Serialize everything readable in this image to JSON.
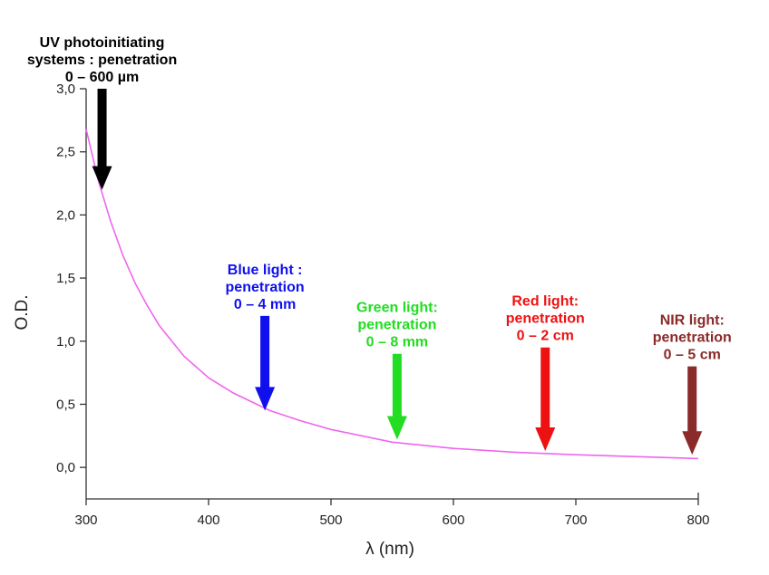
{
  "chart_data": {
    "type": "line",
    "title": "",
    "xlabel": "λ (nm)",
    "ylabel": "O.D.",
    "xlim": [
      300,
      800
    ],
    "ylim": [
      -0.25,
      3.0
    ],
    "x_ticks": [
      300,
      400,
      500,
      600,
      700,
      800
    ],
    "x_tick_labels": [
      "300",
      "400",
      "500",
      "600",
      "700",
      "800"
    ],
    "y_ticks": [
      0.0,
      0.5,
      1.0,
      1.5,
      2.0,
      2.5,
      3.0
    ],
    "y_tick_labels": [
      "0,0",
      "0,5",
      "1,0",
      "1,5",
      "2,0",
      "2,5",
      "3,0"
    ],
    "grid": false,
    "series": [
      {
        "color": "#ee66ee",
        "x": [
          300,
          310,
          320,
          330,
          340,
          350,
          360,
          380,
          400,
          420,
          450,
          475,
          500,
          550,
          600,
          650,
          700,
          750,
          800
        ],
        "y": [
          2.68,
          2.27,
          1.95,
          1.68,
          1.46,
          1.28,
          1.12,
          0.88,
          0.71,
          0.59,
          0.45,
          0.37,
          0.3,
          0.2,
          0.15,
          0.12,
          0.1,
          0.085,
          0.07
        ]
      }
    ],
    "annotations": [
      {
        "lines": [
          "UV photoinitiating",
          "systems : penetration",
          "0 – 600 µm"
        ],
        "x": 313,
        "arrow_from": 3.0,
        "arrow_to": 2.2,
        "color": "#000000"
      },
      {
        "lines": [
          "Blue light :",
          "penetration",
          "0 – 4 mm"
        ],
        "x": 446,
        "arrow_from": 1.2,
        "arrow_to": 0.45,
        "color": "#1010ee"
      },
      {
        "lines": [
          "Green light:",
          "penetration",
          "0 – 8 mm"
        ],
        "x": 554,
        "arrow_from": 0.9,
        "arrow_to": 0.22,
        "color": "#22dd22"
      },
      {
        "lines": [
          "Red light:",
          "penetration",
          "0 – 2 cm"
        ],
        "x": 675,
        "arrow_from": 0.95,
        "arrow_to": 0.13,
        "color": "#ee1111"
      },
      {
        "lines": [
          "NIR light:",
          "penetration",
          "0 – 5 cm"
        ],
        "x": 795,
        "arrow_from": 0.8,
        "arrow_to": 0.1,
        "color": "#8b2a2a"
      }
    ]
  }
}
